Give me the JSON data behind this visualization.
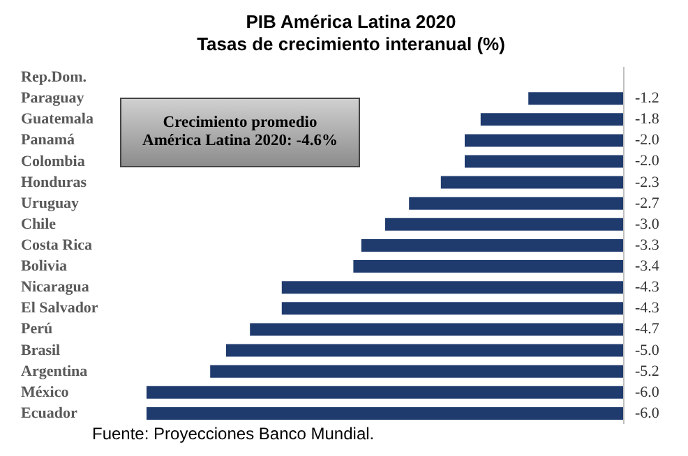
{
  "chart_data": {
    "type": "bar",
    "orientation": "horizontal",
    "title": "PIB América Latina 2020",
    "subtitle": "Tasas de crecimiento interanual (%)",
    "categories": [
      "Rep.Dom.",
      "Paraguay",
      "Guatemala",
      "Panamá",
      "Colombia",
      "Honduras",
      "Uruguay",
      "Chile",
      "Costa Rica",
      "Bolivia",
      "Nicaragua",
      "El Salvador",
      "Perú",
      "Brasil",
      "Argentina",
      "México",
      "Ecuador"
    ],
    "values": [
      null,
      -1.2,
      -1.8,
      -2.0,
      -2.0,
      -2.3,
      -2.7,
      -3.0,
      -3.3,
      -3.4,
      -4.3,
      -4.3,
      -4.7,
      -5.0,
      -5.2,
      -6.0,
      -6.0
    ],
    "value_labels": [
      null,
      "-1.2",
      "-1.8",
      "-2.0",
      "-2.0",
      "-2.3",
      "-2.7",
      "-3.0",
      "-3.3",
      "-3.4",
      "-4.3",
      "-4.3",
      "-4.7",
      "-5.0",
      "-5.2",
      "-6.0",
      "-6.0"
    ],
    "color": "#1f3b6e",
    "annotations": [
      "Crecimiento promedio América Latina 2020: -4.6%",
      "Fuente: Proyecciones Banco Mundial."
    ]
  }
}
